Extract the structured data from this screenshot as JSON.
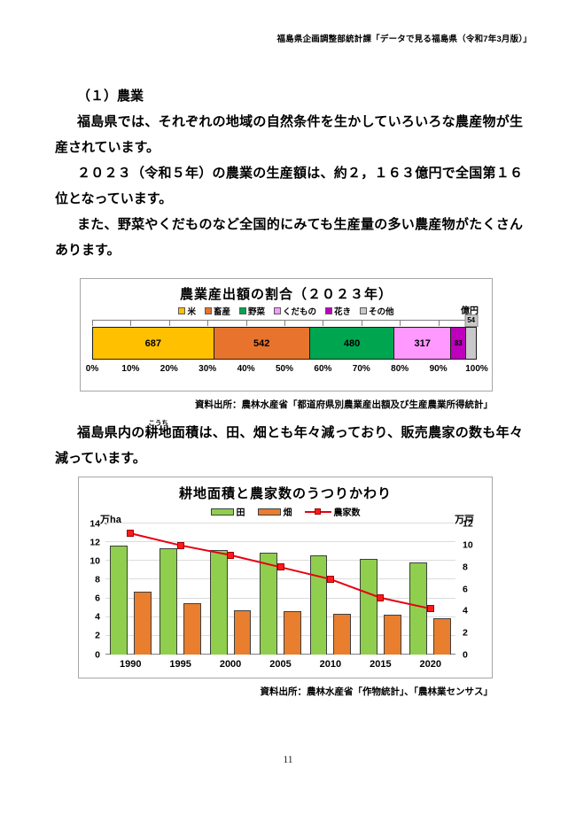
{
  "page": {
    "number": "11"
  },
  "header": {
    "credit": "福島県企画調整部統計課「データで見る福島県（令和7年3月版）」"
  },
  "section": {
    "heading": "（１）農業",
    "paragraphs": [
      "福島県では、それぞれの地域の自然条件を生かしていろいろな農産物が生産されています。",
      "２０２３（令和５年）の農業の生産額は、約２，１６３億円で全国第１６位となっています。",
      "また、野菜やくだものなど全国的にみても生産量の多い農産物がたくさんあります。"
    ],
    "p4": {
      "before": "福島県内の",
      "ruby_base": "耕地",
      "ruby_text": "こうち",
      "after": "面積は、田、畑とも年々減っており、販売農家の数も年々減っています。"
    }
  },
  "chart_data": [
    {
      "type": "bar",
      "variant": "stacked-horizontal-100pct",
      "title": "農業産出額の割合（２０２３年）",
      "unit_label": "億円",
      "total": 2163,
      "segments": [
        {
          "label": "米",
          "value": 687,
          "color": "#FFC000",
          "value_label_pos": "center"
        },
        {
          "label": "畜産",
          "value": 542,
          "color": "#E8732D",
          "value_label_pos": "center"
        },
        {
          "label": "野菜",
          "value": 480,
          "color": "#00A550",
          "value_label_pos": "center"
        },
        {
          "label": "くだもの",
          "value": 317,
          "color": "#FF99FF",
          "value_label_pos": "center"
        },
        {
          "label": "花き",
          "value": 83,
          "color": "#BC00BC",
          "value_label_pos": "center-small"
        },
        {
          "label": "その他",
          "value": 54,
          "color": "#C9C9C9",
          "value_label_pos": "top-small"
        }
      ],
      "x_ticks": [
        "0%",
        "10%",
        "20%",
        "30%",
        "40%",
        "50%",
        "60%",
        "70%",
        "80%",
        "90%",
        "100%"
      ],
      "source": "資料出所：農林水産省「都道府県別農業産出額及び生産農業所得統計」"
    },
    {
      "type": "bar-line-combo",
      "title": "耕地面積と農家数のうつりかわり",
      "left_axis": {
        "label": "万ha",
        "min": 0,
        "max": 14,
        "step": 2
      },
      "right_axis": {
        "label": "万戸",
        "min": 0,
        "max": 12,
        "step": 2
      },
      "categories": [
        "1990",
        "1995",
        "2000",
        "2005",
        "2010",
        "2015",
        "2020"
      ],
      "series": [
        {
          "name": "田",
          "type": "bar",
          "axis": "left",
          "color": "#90CE4E",
          "border": "#3F3F3F",
          "values": [
            11.6,
            11.4,
            11.2,
            10.9,
            10.6,
            10.2,
            9.8
          ]
        },
        {
          "name": "畑",
          "type": "bar",
          "axis": "left",
          "color": "#E87E2E",
          "border": "#3F3F3F",
          "values": [
            6.7,
            5.5,
            4.7,
            4.6,
            4.4,
            4.3,
            3.9
          ]
        },
        {
          "name": "農家数",
          "type": "line",
          "axis": "right",
          "color": "#E60012",
          "marker_fill": "#FF1A1A",
          "values": [
            11.1,
            10.0,
            9.1,
            8.0,
            6.9,
            5.2,
            4.2
          ]
        }
      ],
      "grid": true,
      "source": "資料出所：農林水産省「作物統計」、「農林業センサス」"
    }
  ]
}
